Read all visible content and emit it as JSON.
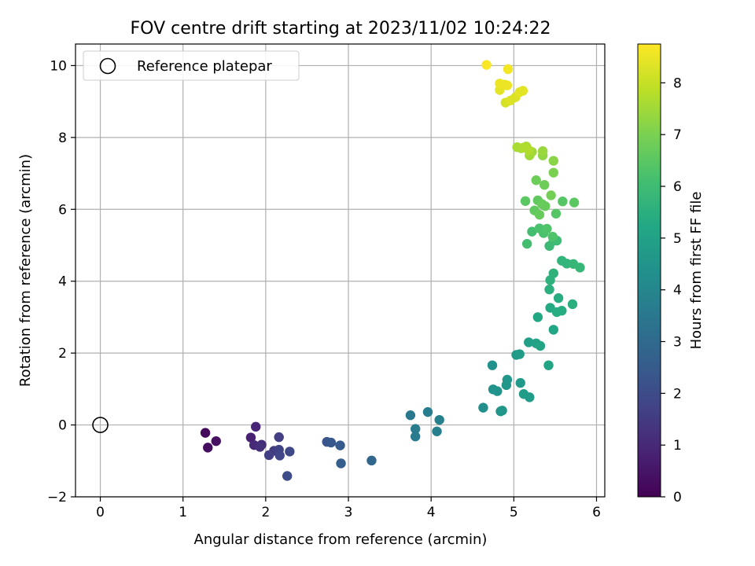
{
  "chart_data": {
    "type": "scatter",
    "title": "FOV centre drift starting at 2023/11/02 10:24:22",
    "xlabel": "Angular distance from reference (arcmin)",
    "ylabel": "Rotation from reference (arcmin)",
    "xlim": [
      -0.3,
      6.1
    ],
    "ylim": [
      -2,
      10.6
    ],
    "xticks": [
      0,
      1,
      2,
      3,
      4,
      5,
      6
    ],
    "yticks": [
      -2,
      0,
      2,
      4,
      6,
      8,
      10
    ],
    "grid": true,
    "legend": {
      "placement": "top-left",
      "entries": [
        "Reference platepar"
      ]
    },
    "reference_point": {
      "x": 0,
      "y": 0,
      "label": "Reference platepar"
    },
    "colorbar": {
      "label": "Hours from first FF file",
      "colormap": "viridis",
      "range": [
        0,
        8.75
      ],
      "ticks": [
        0,
        1,
        2,
        3,
        4,
        5,
        6,
        7,
        8
      ]
    },
    "points": [
      {
        "x": 1.27,
        "y": -0.22,
        "c": 0.2
      },
      {
        "x": 1.3,
        "y": -0.63,
        "c": 0.3
      },
      {
        "x": 1.4,
        "y": -0.45,
        "c": 0.4
      },
      {
        "x": 1.82,
        "y": -0.35,
        "c": 0.8
      },
      {
        "x": 1.88,
        "y": -0.05,
        "c": 0.9
      },
      {
        "x": 1.86,
        "y": -0.56,
        "c": 1.0
      },
      {
        "x": 1.95,
        "y": -0.55,
        "c": 1.1
      },
      {
        "x": 1.93,
        "y": -0.61,
        "c": 1.2
      },
      {
        "x": 2.1,
        "y": -0.72,
        "c": 1.5
      },
      {
        "x": 2.04,
        "y": -0.84,
        "c": 1.6
      },
      {
        "x": 2.16,
        "y": -0.34,
        "c": 1.6
      },
      {
        "x": 2.16,
        "y": -0.69,
        "c": 1.7
      },
      {
        "x": 2.17,
        "y": -0.85,
        "c": 1.8
      },
      {
        "x": 2.29,
        "y": -0.74,
        "c": 1.9
      },
      {
        "x": 2.26,
        "y": -1.42,
        "c": 2.0
      },
      {
        "x": 2.74,
        "y": -0.47,
        "c": 2.3
      },
      {
        "x": 2.79,
        "y": -0.49,
        "c": 2.4
      },
      {
        "x": 2.9,
        "y": -0.57,
        "c": 2.5
      },
      {
        "x": 2.91,
        "y": -1.07,
        "c": 2.6
      },
      {
        "x": 3.28,
        "y": -0.99,
        "c": 2.9
      },
      {
        "x": 3.75,
        "y": 0.27,
        "c": 3.5
      },
      {
        "x": 3.81,
        "y": -0.11,
        "c": 3.6
      },
      {
        "x": 3.81,
        "y": -0.32,
        "c": 3.6
      },
      {
        "x": 3.96,
        "y": 0.36,
        "c": 3.7
      },
      {
        "x": 4.1,
        "y": 0.14,
        "c": 3.8
      },
      {
        "x": 4.07,
        "y": -0.18,
        "c": 3.8
      },
      {
        "x": 4.63,
        "y": 0.48,
        "c": 4.3
      },
      {
        "x": 4.74,
        "y": 1.66,
        "c": 4.4
      },
      {
        "x": 4.75,
        "y": 0.99,
        "c": 4.4
      },
      {
        "x": 4.8,
        "y": 0.94,
        "c": 4.5
      },
      {
        "x": 4.84,
        "y": 0.38,
        "c": 4.5
      },
      {
        "x": 4.86,
        "y": 0.4,
        "c": 4.6
      },
      {
        "x": 4.91,
        "y": 1.11,
        "c": 4.6
      },
      {
        "x": 4.92,
        "y": 1.26,
        "c": 4.6
      },
      {
        "x": 5.03,
        "y": 1.95,
        "c": 4.7
      },
      {
        "x": 5.08,
        "y": 1.17,
        "c": 4.7
      },
      {
        "x": 5.12,
        "y": 0.86,
        "c": 4.8
      },
      {
        "x": 5.07,
        "y": 1.97,
        "c": 4.8
      },
      {
        "x": 5.19,
        "y": 0.77,
        "c": 4.8
      },
      {
        "x": 5.18,
        "y": 2.3,
        "c": 4.9
      },
      {
        "x": 5.27,
        "y": 2.27,
        "c": 5.0
      },
      {
        "x": 5.32,
        "y": 2.2,
        "c": 5.1
      },
      {
        "x": 5.42,
        "y": 1.66,
        "c": 5.1
      },
      {
        "x": 5.29,
        "y": 3.0,
        "c": 5.2
      },
      {
        "x": 5.48,
        "y": 2.65,
        "c": 5.2
      },
      {
        "x": 5.44,
        "y": 3.26,
        "c": 5.3
      },
      {
        "x": 5.52,
        "y": 3.14,
        "c": 5.4
      },
      {
        "x": 5.58,
        "y": 3.18,
        "c": 5.4
      },
      {
        "x": 5.54,
        "y": 3.53,
        "c": 5.4
      },
      {
        "x": 5.71,
        "y": 3.36,
        "c": 5.5
      },
      {
        "x": 5.43,
        "y": 3.77,
        "c": 5.5
      },
      {
        "x": 5.44,
        "y": 4.03,
        "c": 5.6
      },
      {
        "x": 5.48,
        "y": 4.22,
        "c": 5.6
      },
      {
        "x": 5.58,
        "y": 4.57,
        "c": 5.7
      },
      {
        "x": 5.64,
        "y": 4.49,
        "c": 5.7
      },
      {
        "x": 5.72,
        "y": 4.48,
        "c": 5.8
      },
      {
        "x": 5.8,
        "y": 4.38,
        "c": 5.8
      },
      {
        "x": 5.43,
        "y": 4.98,
        "c": 5.9
      },
      {
        "x": 5.48,
        "y": 5.13,
        "c": 6.0
      },
      {
        "x": 5.52,
        "y": 5.13,
        "c": 6.0
      },
      {
        "x": 5.16,
        "y": 5.04,
        "c": 6.1
      },
      {
        "x": 5.22,
        "y": 5.38,
        "c": 6.1
      },
      {
        "x": 5.31,
        "y": 5.47,
        "c": 6.2
      },
      {
        "x": 5.36,
        "y": 5.34,
        "c": 6.2
      },
      {
        "x": 5.4,
        "y": 5.46,
        "c": 6.3
      },
      {
        "x": 5.47,
        "y": 5.24,
        "c": 6.3
      },
      {
        "x": 5.51,
        "y": 5.88,
        "c": 6.4
      },
      {
        "x": 5.59,
        "y": 6.22,
        "c": 6.4
      },
      {
        "x": 5.73,
        "y": 6.19,
        "c": 6.5
      },
      {
        "x": 5.14,
        "y": 6.23,
        "c": 6.5
      },
      {
        "x": 5.25,
        "y": 5.97,
        "c": 6.6
      },
      {
        "x": 5.29,
        "y": 6.25,
        "c": 6.6
      },
      {
        "x": 5.31,
        "y": 5.85,
        "c": 6.7
      },
      {
        "x": 5.34,
        "y": 6.15,
        "c": 6.7
      },
      {
        "x": 5.38,
        "y": 6.09,
        "c": 6.7
      },
      {
        "x": 5.27,
        "y": 6.81,
        "c": 6.8
      },
      {
        "x": 5.37,
        "y": 6.68,
        "c": 6.8
      },
      {
        "x": 5.45,
        "y": 6.39,
        "c": 6.9
      },
      {
        "x": 5.48,
        "y": 7.02,
        "c": 7.0
      },
      {
        "x": 5.48,
        "y": 7.35,
        "c": 7.2
      },
      {
        "x": 5.35,
        "y": 7.5,
        "c": 7.3
      },
      {
        "x": 5.35,
        "y": 7.62,
        "c": 7.4
      },
      {
        "x": 5.22,
        "y": 7.6,
        "c": 7.5
      },
      {
        "x": 5.19,
        "y": 7.5,
        "c": 7.5
      },
      {
        "x": 5.04,
        "y": 7.73,
        "c": 7.6
      },
      {
        "x": 5.09,
        "y": 7.7,
        "c": 7.6
      },
      {
        "x": 5.15,
        "y": 7.75,
        "c": 7.6
      },
      {
        "x": 5.18,
        "y": 7.65,
        "c": 7.7
      },
      {
        "x": 5.12,
        "y": 7.72,
        "c": 7.7
      },
      {
        "x": 4.9,
        "y": 8.97,
        "c": 8.2
      },
      {
        "x": 4.96,
        "y": 9.03,
        "c": 8.3
      },
      {
        "x": 5.02,
        "y": 9.12,
        "c": 8.3
      },
      {
        "x": 5.07,
        "y": 9.26,
        "c": 8.4
      },
      {
        "x": 5.11,
        "y": 9.3,
        "c": 8.4
      },
      {
        "x": 4.83,
        "y": 9.32,
        "c": 8.4
      },
      {
        "x": 4.83,
        "y": 9.5,
        "c": 8.5
      },
      {
        "x": 4.89,
        "y": 9.47,
        "c": 8.5
      },
      {
        "x": 4.92,
        "y": 9.45,
        "c": 8.5
      },
      {
        "x": 4.93,
        "y": 9.9,
        "c": 8.6
      },
      {
        "x": 4.67,
        "y": 10.02,
        "c": 8.7
      }
    ]
  }
}
